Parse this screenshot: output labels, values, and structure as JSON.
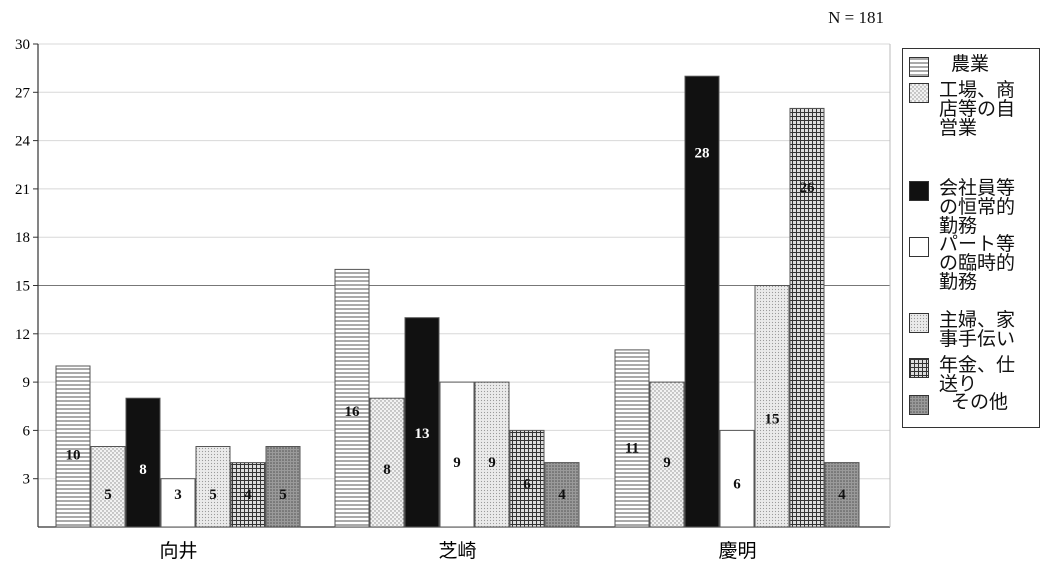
{
  "header": {
    "n_label": "N = 181"
  },
  "chart_data": {
    "type": "bar",
    "categories": [
      "向井",
      "芝崎",
      "慶明"
    ],
    "ylim": [
      0,
      30
    ],
    "yticks": [
      3,
      6,
      9,
      12,
      15,
      18,
      21,
      24,
      27,
      30
    ],
    "grid": true,
    "legend_position": "right",
    "series": [
      {
        "name": "農業",
        "values": [
          10,
          16,
          11
        ],
        "pattern": "hlines",
        "labels": [
          "10",
          "16",
          "11"
        ]
      },
      {
        "name": "工場、商\n店等の自\n営業",
        "values": [
          5,
          8,
          9
        ],
        "pattern": "dots",
        "labels": [
          "5",
          "8",
          "9"
        ]
      },
      {
        "name": "会社員等\nの恒常的\n勤務",
        "values": [
          8,
          13,
          28
        ],
        "pattern": "black",
        "labels": [
          "8",
          "13",
          "28"
        ]
      },
      {
        "name": "パート等\nの臨時的\n勤務",
        "values": [
          3,
          9,
          6
        ],
        "pattern": "white",
        "labels": [
          "3",
          "9",
          "6"
        ]
      },
      {
        "name": "主婦、家\n事手伝い",
        "values": [
          5,
          9,
          15
        ],
        "pattern": "fine-dots",
        "labels": [
          "5",
          "9",
          "15"
        ]
      },
      {
        "name": "年金、仕\n送り",
        "values": [
          4,
          6,
          26
        ],
        "pattern": "grid",
        "labels": [
          "4",
          "6",
          "26"
        ]
      },
      {
        "name": "その他",
        "values": [
          5,
          4,
          4
        ],
        "pattern": "dense",
        "labels": [
          "5",
          "4",
          "4"
        ]
      }
    ]
  }
}
